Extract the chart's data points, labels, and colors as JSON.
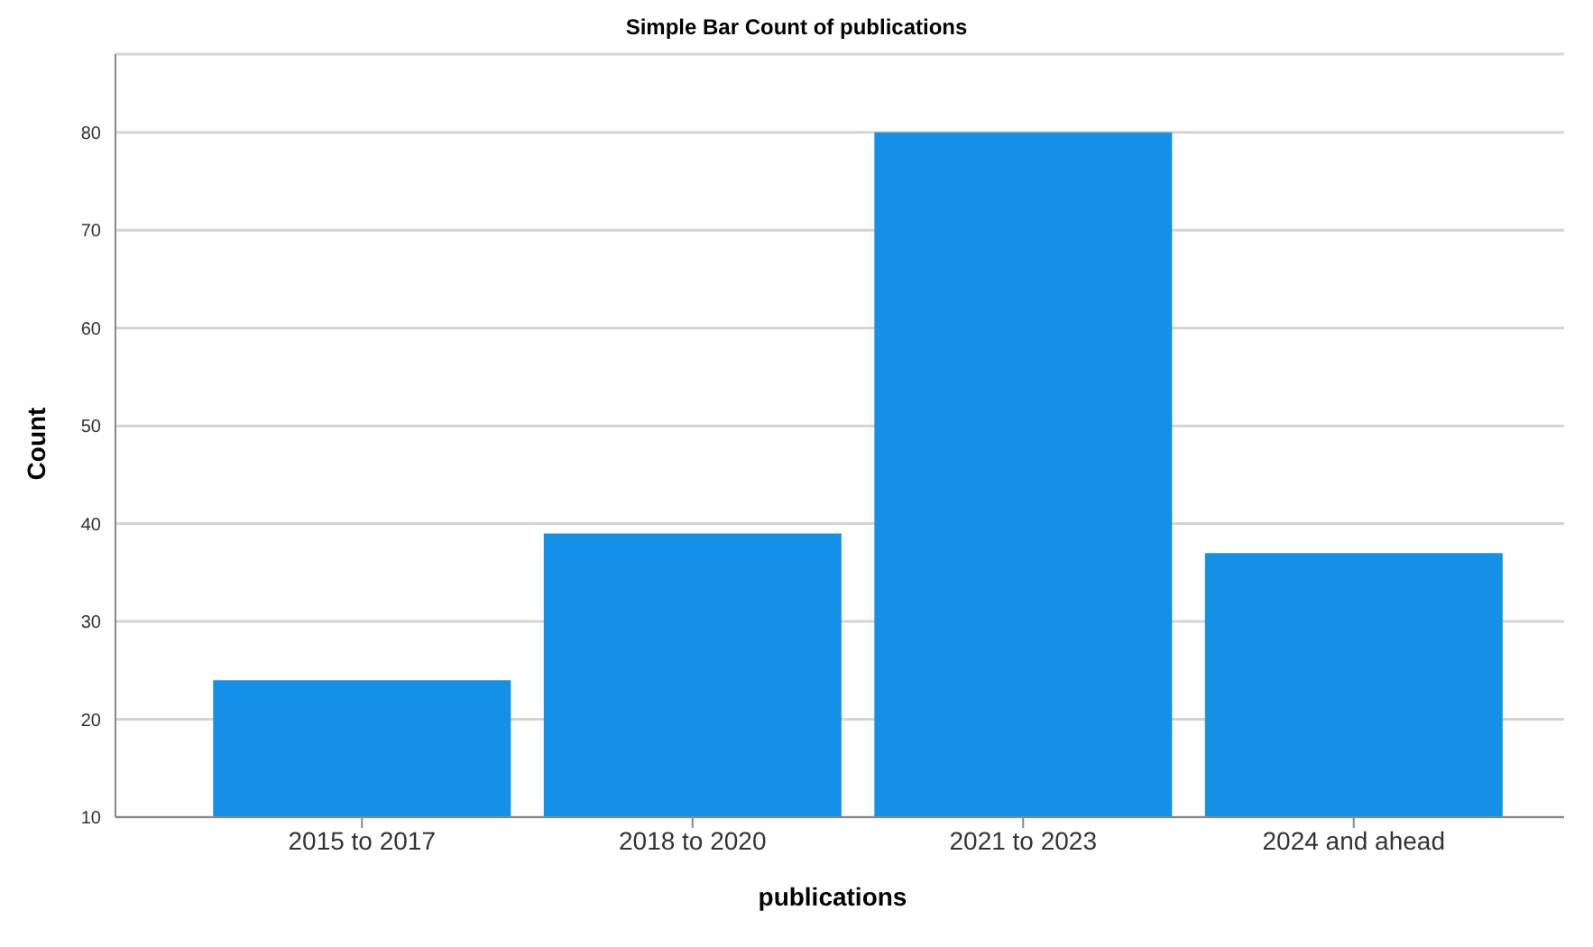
{
  "chart_data": {
    "type": "bar",
    "title": "Simple Bar Count of publications",
    "xlabel": "publications",
    "ylabel": "Count",
    "categories": [
      "2015 to 2017",
      "2018 to 2020",
      "2021 to 2023",
      "2024 and ahead"
    ],
    "values": [
      24,
      39,
      80,
      37
    ],
    "color": "#1490e6",
    "ylim": [
      10,
      88
    ],
    "yticks": [
      10,
      20,
      30,
      40,
      50,
      60,
      70,
      80
    ],
    "grid": "y"
  }
}
